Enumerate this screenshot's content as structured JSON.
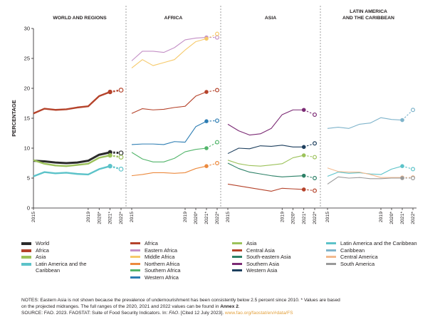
{
  "chart_data": {
    "type": "line",
    "ylabel": "PERCENTAGE",
    "ylim": [
      0,
      30
    ],
    "y_ticks": [
      "0",
      "5",
      "10",
      "15",
      "20",
      "25",
      "30"
    ],
    "x_ticks": [
      "2015",
      "2019",
      "2020*",
      "2021*",
      "2022*"
    ],
    "grid": false,
    "panels": [
      {
        "title": "WORLD AND REGIONS",
        "series": [
          {
            "name": "World",
            "color": "#2b2b2b",
            "values": [
              7.9,
              7.8,
              7.6,
              7.5,
              7.6,
              7.9,
              8.9,
              9.3,
              9.2
            ]
          },
          {
            "name": "Africa",
            "color": "#b5432b",
            "values": [
              15.8,
              16.6,
              16.4,
              16.5,
              16.8,
              17.0,
              18.7,
              19.4,
              19.7
            ]
          },
          {
            "name": "Asia",
            "color": "#9cc25a",
            "values": [
              8.0,
              7.4,
              7.1,
              7.0,
              7.2,
              7.4,
              8.4,
              8.8,
              8.5
            ]
          },
          {
            "name": "Latin America and the Caribbean",
            "color": "#5cc3c9",
            "values": [
              5.3,
              6.0,
              5.8,
              5.9,
              5.7,
              5.6,
              6.5,
              7.0,
              6.5
            ]
          }
        ]
      },
      {
        "title": "AFRICA",
        "series": [
          {
            "name": "Eastern Africa",
            "color": "#c490c6",
            "values": [
              24.6,
              26.2,
              26.2,
              26.0,
              26.8,
              28.1,
              28.4,
              28.5,
              28.5
            ]
          },
          {
            "name": "Middle Africa",
            "color": "#f6c96a",
            "values": [
              23.4,
              24.8,
              23.8,
              24.3,
              24.8,
              26.4,
              27.8,
              28.3,
              29.1
            ]
          },
          {
            "name": "Africa",
            "color": "#b5432b",
            "values": [
              15.8,
              16.6,
              16.4,
              16.5,
              16.8,
              17.0,
              18.7,
              19.4,
              19.7
            ]
          },
          {
            "name": "Western Africa",
            "color": "#2d7db3",
            "values": [
              10.6,
              10.7,
              10.7,
              10.6,
              11.1,
              11.0,
              13.6,
              14.5,
              14.6
            ]
          },
          {
            "name": "Southern Africa",
            "color": "#53b56b",
            "values": [
              9.3,
              8.2,
              7.7,
              7.7,
              8.3,
              9.4,
              9.8,
              10.0,
              11.0
            ]
          },
          {
            "name": "Northern Africa",
            "color": "#ec8a3e",
            "values": [
              5.4,
              5.6,
              5.9,
              5.9,
              5.8,
              5.9,
              6.6,
              7.0,
              7.5
            ]
          }
        ]
      },
      {
        "title": "ASIA",
        "series": [
          {
            "name": "Southern Asia",
            "color": "#7b2a74",
            "values": [
              14.0,
              12.9,
              12.2,
              12.4,
              13.3,
              15.6,
              16.4,
              16.4,
              15.6
            ]
          },
          {
            "name": "Western Asia",
            "color": "#1d3f5e",
            "values": [
              9.1,
              10.0,
              9.9,
              10.4,
              10.3,
              10.5,
              10.2,
              10.2,
              10.8
            ]
          },
          {
            "name": "Asia",
            "color": "#9cc25a",
            "values": [
              8.0,
              7.4,
              7.1,
              7.0,
              7.2,
              7.4,
              8.4,
              8.8,
              8.5
            ]
          },
          {
            "name": "South-eastern Asia",
            "color": "#2c8066",
            "values": [
              7.5,
              6.6,
              6.0,
              5.7,
              5.4,
              5.2,
              5.3,
              5.4,
              5.0
            ]
          },
          {
            "name": "Central Asia",
            "color": "#b5432b",
            "values": [
              4.0,
              3.7,
              3.4,
              3.1,
              2.8,
              3.3,
              3.2,
              3.1,
              2.9
            ]
          }
        ]
      },
      {
        "title": "LATIN AMERICA AND THE CARIBBEAN",
        "series": [
          {
            "name": "Caribbean",
            "color": "#7fb4cb",
            "values": [
              13.3,
              13.5,
              13.3,
              14.0,
              14.2,
              15.1,
              14.8,
              14.7,
              16.4
            ]
          },
          {
            "name": "Latin America and the Caribbean",
            "color": "#5cc3c9",
            "values": [
              5.3,
              6.0,
              5.8,
              5.9,
              5.7,
              5.6,
              6.5,
              7.0,
              6.5
            ]
          },
          {
            "name": "Central America",
            "color": "#f2b98e",
            "values": [
              6.7,
              6.1,
              6.0,
              6.0,
              5.6,
              5.1,
              5.1,
              5.1,
              5.1
            ]
          },
          {
            "name": "South America",
            "color": "#9a9a9a",
            "values": [
              4.0,
              5.2,
              5.0,
              5.1,
              4.9,
              4.9,
              5.0,
              5.0,
              5.0
            ]
          }
        ]
      }
    ],
    "legend": [
      [
        "World",
        "Africa",
        "Asia",
        "Latin America and the Caribbean"
      ],
      [
        "Africa",
        "Eastern Africa",
        "Middle Africa",
        "Northern Africa",
        "Southern Africa",
        "Western Africa"
      ],
      [
        "Asia",
        "Central Asia",
        "South-eastern Asia",
        "Southern Asia",
        "Western Asia"
      ],
      [
        "Latin America and the Caribbean",
        "Caribbean",
        "Central America",
        "South America"
      ]
    ]
  },
  "notes": {
    "line1": "NOTES: Eastern Asia is not shown because the prevalence of undernourishment has been consistently below 2.5 percent since 2010. * Values are based",
    "line2a": "on the projected midranges. The full ranges of the 2020, 2021 and 2022 values can be found in ",
    "annex": "Annex 2",
    "line2b": ".",
    "source": "SOURCE: FAO. 2023. FAOSTAT: Suite of Food Security Indicators. In: ",
    "fao": "FAO",
    "source2": ". [Cited 12 July 2023]. ",
    "url": "www.fao.org/faostat/en/#data/FS"
  }
}
